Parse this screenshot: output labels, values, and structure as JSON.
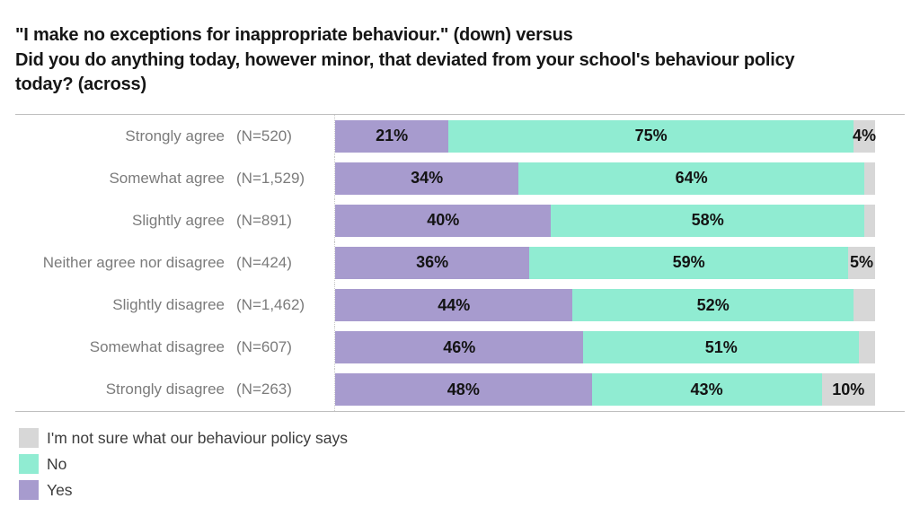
{
  "title": {
    "lines": [
      "\"I make no exceptions for inappropriate behaviour.\" (down) versus",
      "Did you do anything today, however minor, that deviated from your school's behaviour policy",
      "today? (across)"
    ]
  },
  "colors": {
    "yes": "#a79bce",
    "no": "#90ecd2",
    "unsure": "#d7d7d7",
    "category_text": "#7b7b7b",
    "value_text": "#131313",
    "title_text": "#161616"
  },
  "chart_data": {
    "type": "bar",
    "orientation": "horizontal",
    "stacked": true,
    "title": "\"I make no exceptions for inappropriate behaviour.\" (down) versus Did you do anything today, however minor, that deviated from your school's behaviour policy today? (across)",
    "xlabel": "",
    "ylabel": "",
    "xlim": [
      0,
      100
    ],
    "grid": false,
    "legend_position": "bottom-left",
    "categories": [
      "Strongly agree",
      "Somewhat agree",
      "Slightly agree",
      "Neither agree nor disagree",
      "Slightly disagree",
      "Somewhat disagree",
      "Strongly disagree"
    ],
    "category_counts": [
      "(N=520)",
      "(N=1,529)",
      "(N=891)",
      "(N=424)",
      "(N=1,462)",
      "(N=607)",
      "(N=263)"
    ],
    "series": [
      {
        "key": "yes",
        "name": "Yes",
        "color": "#a79bce",
        "values": [
          21,
          34,
          40,
          36,
          44,
          46,
          48
        ],
        "value_labels": [
          "21%",
          "34%",
          "40%",
          "36%",
          "44%",
          "46%",
          "48%"
        ]
      },
      {
        "key": "no",
        "name": "No",
        "color": "#90ecd2",
        "values": [
          75,
          64,
          58,
          59,
          52,
          51,
          43
        ],
        "value_labels": [
          "75%",
          "64%",
          "58%",
          "59%",
          "52%",
          "51%",
          "43%"
        ]
      },
      {
        "key": "unsure",
        "name": "I'm not sure what our behaviour policy says",
        "color": "#d7d7d7",
        "values": [
          4,
          2,
          2,
          5,
          4,
          3,
          10
        ],
        "value_labels": [
          "4%",
          "",
          "",
          "5%",
          "",
          "",
          "10%"
        ]
      }
    ]
  },
  "legend": {
    "items": [
      {
        "key": "unsure",
        "label": "I'm not sure what our behaviour policy says",
        "color": "#d7d7d7"
      },
      {
        "key": "no",
        "label": "No",
        "color": "#90ecd2"
      },
      {
        "key": "yes",
        "label": "Yes",
        "color": "#a79bce"
      }
    ]
  }
}
